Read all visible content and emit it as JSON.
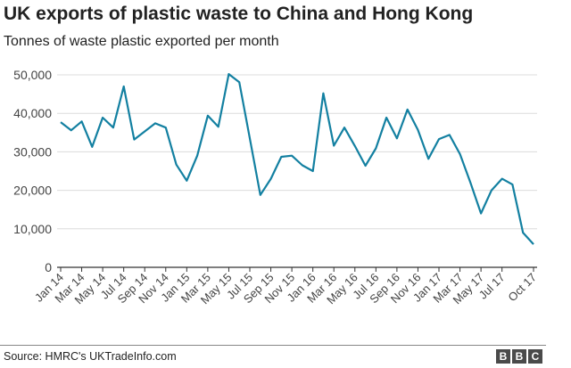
{
  "chart_data": {
    "type": "line",
    "title": "UK exports of plastic waste to China and Hong Kong",
    "subtitle": "Tonnes of waste plastic exported per month",
    "xlabel": "",
    "ylabel": "",
    "ylim": [
      0,
      50000
    ],
    "yticks": [
      0,
      10000,
      20000,
      30000,
      40000,
      50000
    ],
    "ytick_labels": [
      "0",
      "10,000",
      "20,000",
      "30,000",
      "40,000",
      "50,000"
    ],
    "grid": "horizontal",
    "x": [
      "Jan 14",
      "Feb 14",
      "Mar 14",
      "Apr 14",
      "May 14",
      "Jun 14",
      "Jul 14",
      "Aug 14",
      "Sep 14",
      "Oct 14",
      "Nov 14",
      "Dec 14",
      "Jan 15",
      "Feb 15",
      "Mar 15",
      "Apr 15",
      "May 15",
      "Jun 15",
      "Jul 15",
      "Aug 15",
      "Sep 15",
      "Oct 15",
      "Nov 15",
      "Dec 15",
      "Jan 16",
      "Feb 16",
      "Mar 16",
      "Apr 16",
      "May 16",
      "Jun 16",
      "Jul 16",
      "Aug 16",
      "Sep 16",
      "Oct 16",
      "Nov 16",
      "Dec 16",
      "Jan 17",
      "Feb 17",
      "Mar 17",
      "Apr 17",
      "May 17",
      "Jun 17",
      "Jul 17",
      "Aug 17",
      "Sep 17",
      "Oct 17"
    ],
    "xtick_labels": [
      "Jan 14",
      "Mar 14",
      "May 14",
      "Jul 14",
      "Sep 14",
      "Nov 14",
      "Jan 15",
      "Mar 15",
      "May 15",
      "Jul 15",
      "Sep 15",
      "Nov 15",
      "Jan 16",
      "Mar 16",
      "May 16",
      "Jul 16",
      "Sep 16",
      "Nov 16",
      "Jan 17",
      "Mar 17",
      "May 17",
      "Jul 17",
      "Oct 17"
    ],
    "series": [
      {
        "name": "",
        "color": "#1380a1",
        "values": [
          37700,
          35600,
          37900,
          31300,
          38900,
          36300,
          47000,
          33200,
          35300,
          37400,
          36300,
          26700,
          22500,
          29000,
          39400,
          36500,
          50200,
          48100,
          33500,
          18800,
          23000,
          28700,
          29000,
          26500,
          25000,
          45200,
          31600,
          36300,
          31500,
          26400,
          30900,
          38900,
          33500,
          41000,
          35700,
          28200,
          33300,
          34400,
          29400,
          22000,
          14000,
          20000,
          23000,
          21500,
          9000,
          6000
        ]
      }
    ]
  },
  "source": "Source: HMRC's UKTradeInfo.com",
  "logo_letters": [
    "B",
    "B",
    "C"
  ],
  "colors": {
    "line": "#1380a1",
    "grid": "#dcdcdc",
    "axis": "#333333"
  }
}
